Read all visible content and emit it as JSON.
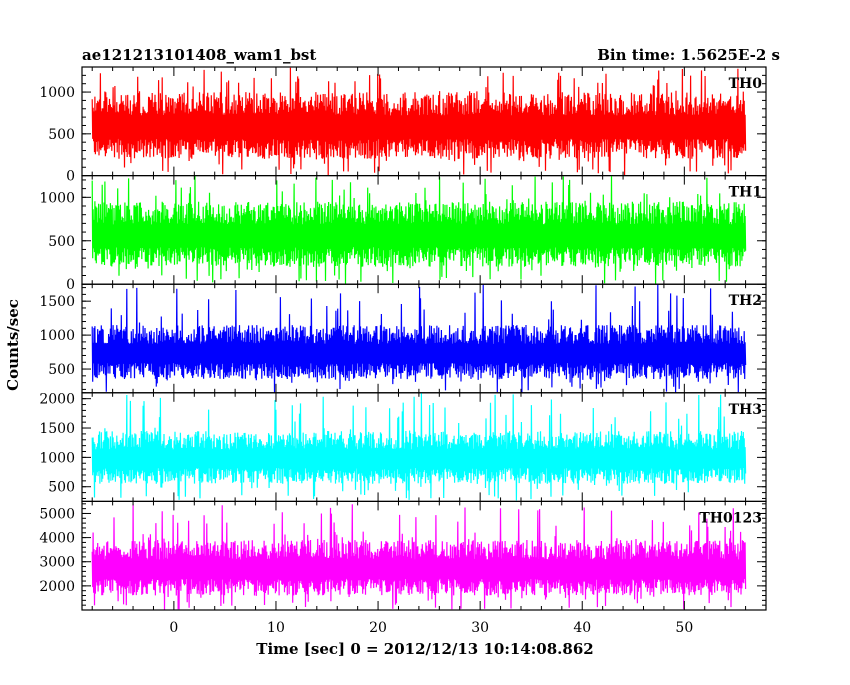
{
  "header": {
    "title": "ae121213101408_wam1_bst",
    "bin_time": "Bin time: 1.5625E-2 s"
  },
  "chart_data": {
    "type": "line",
    "xlabel": "Time [sec] 0 = 2012/12/13 10:14:08.862",
    "ylabel": "Counts/sec",
    "xlim": [
      -9,
      58
    ],
    "x_ticks": [
      0,
      10,
      20,
      30,
      40,
      50
    ],
    "x_tick_labels": [
      "0",
      "10",
      "20",
      "30",
      "40",
      "50"
    ],
    "data_x_range": [
      -8,
      56
    ],
    "bin_time_s": 0.015625,
    "panels": [
      {
        "name": "TH0",
        "color": "#ff0000",
        "ylim": [
          0,
          1300
        ],
        "y_ticks": [
          0,
          500,
          1000
        ],
        "y_tick_labels": [
          "0",
          "500",
          "1000"
        ],
        "signal": {
          "typical_min": 200,
          "typical_max": 1000,
          "extreme_min": 0,
          "extreme_max": 1300
        }
      },
      {
        "name": "TH1",
        "color": "#00ff00",
        "ylim": [
          0,
          1250
        ],
        "y_ticks": [
          0,
          500,
          1000
        ],
        "y_tick_labels": [
          "0",
          "500",
          "1000"
        ],
        "signal": {
          "typical_min": 200,
          "typical_max": 950,
          "extreme_min": 0,
          "extreme_max": 1250
        }
      },
      {
        "name": "TH2",
        "color": "#0000ff",
        "ylim": [
          150,
          1750
        ],
        "y_ticks": [
          500,
          1000,
          1500
        ],
        "y_tick_labels": [
          "500",
          "1000",
          "1500"
        ],
        "signal": {
          "typical_min": 350,
          "typical_max": 1150,
          "extreme_min": 150,
          "extreme_max": 1750
        }
      },
      {
        "name": "TH3",
        "color": "#00ffff",
        "ylim": [
          250,
          2100
        ],
        "y_ticks": [
          500,
          1000,
          1500,
          2000
        ],
        "y_tick_labels": [
          "500",
          "1000",
          "1500",
          "2000"
        ],
        "signal": {
          "typical_min": 550,
          "typical_max": 1450,
          "extreme_min": 250,
          "extreme_max": 2100
        }
      },
      {
        "name": "TH0123",
        "color": "#ff00ff",
        "ylim": [
          1000,
          5500
        ],
        "y_ticks": [
          2000,
          3000,
          4000,
          5000
        ],
        "y_tick_labels": [
          "2000",
          "3000",
          "4000",
          "5000"
        ],
        "signal": {
          "typical_min": 1600,
          "typical_max": 3900,
          "extreme_min": 1000,
          "extreme_max": 5400
        }
      }
    ]
  }
}
